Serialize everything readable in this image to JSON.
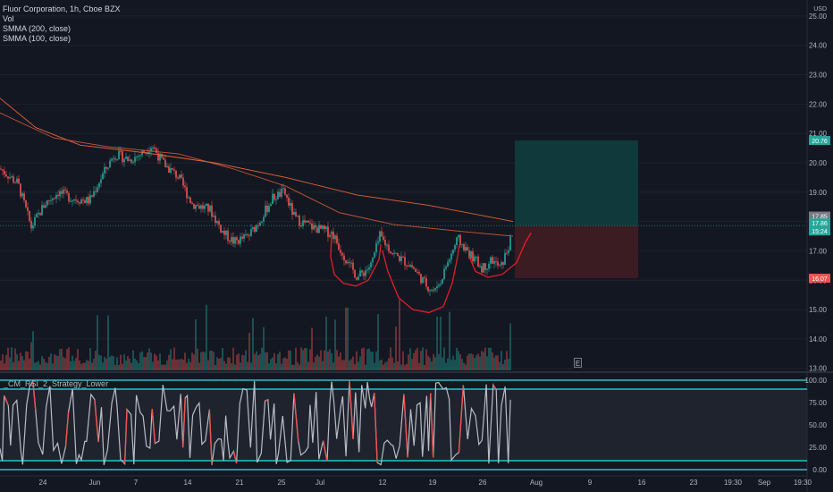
{
  "legend": {
    "symbol_line": "Fluor Corporation, 1h, Cboe BZX",
    "vol": "Vol",
    "smma200": "SMMA (200, close)",
    "smma100": "SMMA (100, close)"
  },
  "currency": "USD",
  "indicator_label": "_CM_RSI_2_Strategy_Lower",
  "e_marker": "E",
  "colors": {
    "background": "#131722",
    "up": "#26a69a",
    "down": "#ef5350",
    "smma": "#e0633a",
    "pattern": "#e31e2a",
    "target_zone": "#0f3b3c",
    "stop_zone": "#3d1c23",
    "rsi_line": "#b9bcc3",
    "rsi_band": "#22c4c8",
    "axis_text": "#b2b5be"
  },
  "price_axis": {
    "ticks": [
      "25.00",
      "24.00",
      "23.00",
      "22.00",
      "21.00",
      "20.00",
      "19.00",
      "18.00",
      "17.00",
      "16.00",
      "15.00",
      "14.00",
      "13.00"
    ],
    "labels": [
      {
        "text": "20.76",
        "color": "#26a69a"
      },
      {
        "text": "17.85",
        "color": "#787b86"
      },
      {
        "text": "17.86",
        "color": "#26a69a"
      },
      {
        "text": "15:24",
        "color": "#26a69a"
      },
      {
        "text": "16.07",
        "color": "#ef5350"
      }
    ]
  },
  "rsi_axis": {
    "ticks": [
      "100.00",
      "75.00",
      "50.00",
      "25.00",
      "0.00"
    ]
  },
  "time_axis": {
    "ticks": [
      "24",
      "Jun",
      "7",
      "14",
      "21",
      "25",
      "Jul",
      "12",
      "19",
      "26",
      "Aug",
      "9",
      "16",
      "23",
      "19:30",
      "Sep",
      "19:30"
    ]
  },
  "chart_data": {
    "type": "candlestick",
    "ylim": [
      12.9,
      25.3
    ],
    "price_path": [
      {
        "x": 0,
        "y": 19.8
      },
      {
        "x": 20,
        "y": 19.3
      },
      {
        "x": 35,
        "y": 17.8
      },
      {
        "x": 50,
        "y": 18.6
      },
      {
        "x": 65,
        "y": 19.0
      },
      {
        "x": 80,
        "y": 18.8
      },
      {
        "x": 100,
        "y": 18.7
      },
      {
        "x": 115,
        "y": 19.6
      },
      {
        "x": 128,
        "y": 20.3
      },
      {
        "x": 145,
        "y": 20.1
      },
      {
        "x": 158,
        "y": 20.3
      },
      {
        "x": 170,
        "y": 20.6
      },
      {
        "x": 182,
        "y": 20.0
      },
      {
        "x": 200,
        "y": 19.5
      },
      {
        "x": 215,
        "y": 18.6
      },
      {
        "x": 235,
        "y": 18.4
      },
      {
        "x": 250,
        "y": 17.6
      },
      {
        "x": 262,
        "y": 17.3
      },
      {
        "x": 278,
        "y": 17.5
      },
      {
        "x": 290,
        "y": 18.0
      },
      {
        "x": 305,
        "y": 18.8
      },
      {
        "x": 318,
        "y": 19.0
      },
      {
        "x": 330,
        "y": 18.1
      },
      {
        "x": 350,
        "y": 17.8
      },
      {
        "x": 372,
        "y": 17.6
      },
      {
        "x": 385,
        "y": 16.8
      },
      {
        "x": 400,
        "y": 16.1
      },
      {
        "x": 415,
        "y": 16.5
      },
      {
        "x": 425,
        "y": 17.5
      },
      {
        "x": 440,
        "y": 16.9
      },
      {
        "x": 460,
        "y": 16.5
      },
      {
        "x": 478,
        "y": 15.8
      },
      {
        "x": 488,
        "y": 15.6
      },
      {
        "x": 498,
        "y": 16.4
      },
      {
        "x": 512,
        "y": 17.4
      },
      {
        "x": 525,
        "y": 16.9
      },
      {
        "x": 540,
        "y": 16.4
      },
      {
        "x": 550,
        "y": 16.7
      },
      {
        "x": 560,
        "y": 16.4
      },
      {
        "x": 572,
        "y": 17.4
      }
    ],
    "smma200": [
      {
        "x": 0,
        "y": 22.2
      },
      {
        "x": 40,
        "y": 21.2
      },
      {
        "x": 90,
        "y": 20.6
      },
      {
        "x": 160,
        "y": 20.35
      },
      {
        "x": 240,
        "y": 20.0
      },
      {
        "x": 320,
        "y": 19.5
      },
      {
        "x": 400,
        "y": 18.9
      },
      {
        "x": 480,
        "y": 18.55
      },
      {
        "x": 574,
        "y": 18.0
      }
    ],
    "smma100": [
      {
        "x": 0,
        "y": 21.7
      },
      {
        "x": 60,
        "y": 20.85
      },
      {
        "x": 120,
        "y": 20.55
      },
      {
        "x": 200,
        "y": 20.3
      },
      {
        "x": 260,
        "y": 19.8
      },
      {
        "x": 320,
        "y": 19.2
      },
      {
        "x": 380,
        "y": 18.3
      },
      {
        "x": 440,
        "y": 17.9
      },
      {
        "x": 520,
        "y": 17.65
      },
      {
        "x": 574,
        "y": 17.5
      }
    ],
    "position": {
      "entry": 17.85,
      "target": 20.76,
      "stop": 16.07,
      "last": 17.86
    },
    "rsi_levels": [
      100,
      90,
      10,
      0
    ],
    "rsi_ylim": [
      -5,
      105
    ]
  }
}
